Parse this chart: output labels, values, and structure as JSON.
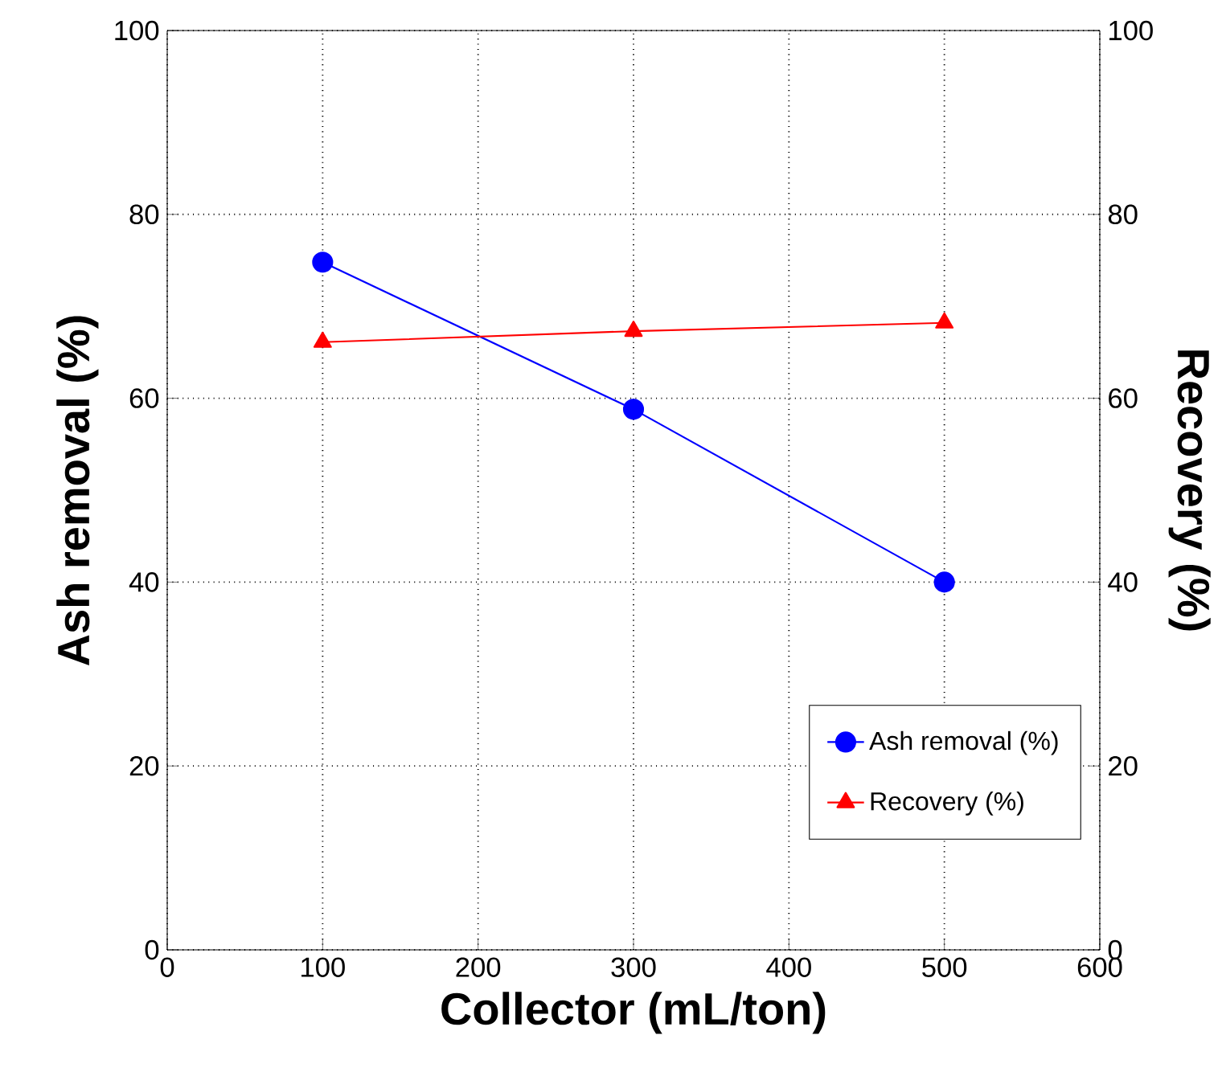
{
  "chart_data": {
    "type": "line",
    "xlabel": "Collector (mL/ton)",
    "ylabel": "Ash removal (%)",
    "y2label": "Recovery (%)",
    "x": [
      100,
      300,
      500
    ],
    "series": [
      {
        "name": "Ash removal (%)",
        "color": "#0000ff",
        "marker": "circle",
        "values": [
          74.8,
          58.8,
          40.0
        ]
      },
      {
        "name": "Recovery (%)",
        "color": "#ff0000",
        "marker": "triangle",
        "axis": "y2",
        "values": [
          66.1,
          67.3,
          68.2
        ]
      }
    ],
    "xlim": [
      0,
      600
    ],
    "xticks": [
      0,
      100,
      200,
      300,
      400,
      500,
      600
    ],
    "ylim": [
      0,
      100
    ],
    "yticks": [
      0,
      20,
      40,
      60,
      80,
      100
    ],
    "y2lim": [
      0,
      100
    ],
    "y2ticks": [
      0,
      20,
      40,
      60,
      80,
      100
    ],
    "grid": true,
    "legend": "bottom right",
    "line_style": "solid"
  }
}
